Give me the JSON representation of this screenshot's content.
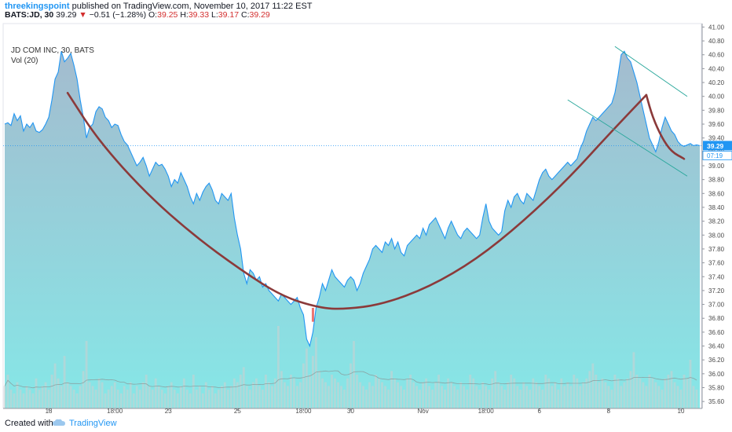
{
  "header": {
    "author": "threekingspoint",
    "published_text": "published on TradingView.com, November 10, 2017 11:22 EST",
    "symbol": "BATS:JD, 30",
    "last": "39.29",
    "change": "−0.51 (−1.28%)",
    "o_label": "O:",
    "o_val": "39.25",
    "h_label": "H:",
    "h_val": "39.33",
    "l_label": "L:",
    "l_val": "39.17",
    "c_label": "C:",
    "c_val": "39.29"
  },
  "legend": {
    "title": "JD COM INC, 30, BATS",
    "vol": "Vol (20)"
  },
  "footer": {
    "created": "Created with",
    "brand": "TradingView"
  },
  "colors": {
    "price_line": "#2196f3",
    "area_top": "#9fb8cc",
    "area_bottom": "#7fe6e6",
    "cup": "#8b3a3a",
    "cup_red": "#e53935",
    "channel": "#26a69a",
    "volume": "#d0d0d0",
    "price_label": "#2196f3"
  },
  "chart_data": {
    "type": "area",
    "title": "JD COM INC, 30, BATS",
    "y_axis": {
      "min": 35.5,
      "max": 41.05,
      "ticks": [
        "41.00",
        "40.80",
        "40.60",
        "40.40",
        "40.20",
        "40.00",
        "39.80",
        "39.60",
        "39.40",
        "39.20",
        "39.00",
        "38.80",
        "38.60",
        "38.40",
        "38.20",
        "38.00",
        "37.80",
        "37.60",
        "37.40",
        "37.20",
        "37.00",
        "36.80",
        "36.60",
        "36.40",
        "36.20",
        "36.00",
        "35.80",
        "35.60"
      ],
      "last_price_label": "39.29",
      "countdown_label": "07:19"
    },
    "x_axis": {
      "labels": [
        "18",
        "18:00",
        "23",
        "25",
        "18:00",
        "30",
        "Nov",
        "18:00",
        "6",
        "8",
        "10"
      ],
      "label_index": [
        14,
        35,
        52,
        74,
        95,
        110,
        133,
        153,
        170,
        192,
        215
      ]
    },
    "bars": 220,
    "series": [
      {
        "name": "Close",
        "values": [
          39.6,
          39.62,
          39.58,
          39.75,
          39.65,
          39.72,
          39.5,
          39.6,
          39.55,
          39.62,
          39.5,
          39.48,
          39.52,
          39.6,
          39.7,
          39.95,
          40.25,
          40.35,
          40.65,
          40.5,
          40.55,
          40.62,
          40.45,
          40.25,
          39.95,
          39.7,
          39.4,
          39.55,
          39.6,
          39.78,
          39.85,
          39.82,
          39.7,
          39.65,
          39.55,
          39.6,
          39.58,
          39.45,
          39.35,
          39.3,
          39.2,
          39.1,
          39.0,
          39.05,
          39.12,
          39.0,
          38.85,
          38.95,
          39.05,
          39.0,
          39.02,
          38.95,
          38.85,
          38.7,
          38.8,
          38.75,
          38.9,
          38.8,
          38.7,
          38.55,
          38.45,
          38.6,
          38.5,
          38.62,
          38.7,
          38.75,
          38.65,
          38.5,
          38.45,
          38.6,
          38.55,
          38.5,
          38.6,
          38.25,
          38.0,
          37.8,
          37.45,
          37.3,
          37.5,
          37.45,
          37.35,
          37.4,
          37.25,
          37.3,
          37.2,
          37.15,
          37.1,
          37.05,
          37.15,
          37.1,
          37.05,
          37.0,
          37.05,
          37.1,
          36.95,
          36.85,
          36.5,
          36.4,
          36.6,
          36.95,
          37.1,
          37.3,
          37.2,
          37.35,
          37.5,
          37.4,
          37.35,
          37.3,
          37.25,
          37.35,
          37.4,
          37.35,
          37.2,
          37.3,
          37.45,
          37.55,
          37.65,
          37.8,
          37.85,
          37.8,
          37.75,
          37.9,
          37.85,
          37.95,
          37.8,
          37.9,
          37.75,
          37.7,
          37.85,
          37.9,
          37.95,
          38.0,
          37.95,
          38.1,
          38.0,
          38.15,
          38.2,
          38.25,
          38.15,
          38.05,
          37.95,
          38.1,
          38.2,
          38.1,
          38.0,
          37.95,
          38.05,
          38.1,
          38.05,
          38.0,
          37.95,
          38.0,
          38.25,
          38.45,
          38.2,
          38.1,
          38.05,
          38.0,
          38.05,
          38.35,
          38.5,
          38.4,
          38.55,
          38.6,
          38.5,
          38.45,
          38.6,
          38.55,
          38.5,
          38.65,
          38.8,
          38.9,
          38.95,
          38.85,
          38.8,
          38.85,
          38.9,
          38.95,
          39.0,
          39.05,
          39.0,
          39.05,
          39.1,
          39.25,
          39.35,
          39.5,
          39.6,
          39.7,
          39.65,
          39.7,
          39.75,
          39.8,
          39.85,
          39.9,
          40.05,
          40.3,
          40.6,
          40.65,
          40.55,
          40.5,
          40.35,
          40.2,
          40.0,
          39.8,
          39.6,
          39.4,
          39.3,
          39.2,
          39.35,
          39.55,
          39.7,
          39.6,
          39.5,
          39.45,
          39.35,
          39.3,
          39.28,
          39.3,
          39.32,
          39.29,
          39.3,
          39.29
        ]
      },
      {
        "name": "Volume",
        "values": [
          6,
          9,
          5,
          4,
          7,
          5,
          4,
          6,
          5,
          4,
          8,
          5,
          6,
          7,
          5,
          9,
          12,
          8,
          6,
          14,
          7,
          6,
          5,
          4,
          6,
          10,
          18,
          7,
          6,
          5,
          8,
          7,
          4,
          5,
          6,
          7,
          5,
          4,
          6,
          5,
          7,
          4,
          6,
          5,
          7,
          9,
          6,
          5,
          8,
          6,
          5,
          4,
          6,
          7,
          5,
          4,
          6,
          8,
          5,
          4,
          9,
          5,
          6,
          4,
          7,
          5,
          6,
          4,
          5,
          6,
          7,
          5,
          6,
          8,
          7,
          9,
          11,
          6,
          5,
          7,
          8,
          6,
          5,
          9,
          7,
          6,
          8,
          22,
          10,
          7,
          6,
          9,
          8,
          6,
          7,
          12,
          16,
          9,
          14,
          19,
          10,
          8,
          7,
          6,
          9,
          8,
          7,
          6,
          5,
          8,
          12,
          18,
          9,
          7,
          6,
          5,
          7,
          6,
          9,
          8,
          7,
          6,
          5,
          10,
          8,
          7,
          6,
          5,
          8,
          9,
          7,
          6,
          5,
          7,
          8,
          6,
          5,
          7,
          9,
          6,
          5,
          8,
          7,
          6,
          5,
          7,
          6,
          5,
          9,
          8,
          6,
          5,
          7,
          6,
          5,
          8,
          10,
          7,
          6,
          5,
          7,
          9,
          8,
          6,
          5,
          7,
          6,
          5,
          8,
          7,
          6,
          5,
          9,
          8,
          6,
          7,
          5,
          8,
          6,
          7,
          6,
          9,
          8,
          6,
          7,
          8,
          10,
          12,
          9,
          7,
          8,
          7,
          6,
          5,
          9,
          8,
          6,
          7,
          8,
          10,
          15,
          9,
          8,
          7,
          6,
          9,
          8,
          7,
          6,
          5,
          8,
          9,
          10,
          7,
          6,
          5,
          9,
          8,
          13,
          6,
          5
        ]
      }
    ],
    "annotations": [
      {
        "type": "cup_curve",
        "description": "rounded bottom drawn from 40.05 down to ~36.95 and back up to 40.0"
      },
      {
        "type": "channel",
        "description": "two parallel descending lines on the right"
      }
    ]
  }
}
